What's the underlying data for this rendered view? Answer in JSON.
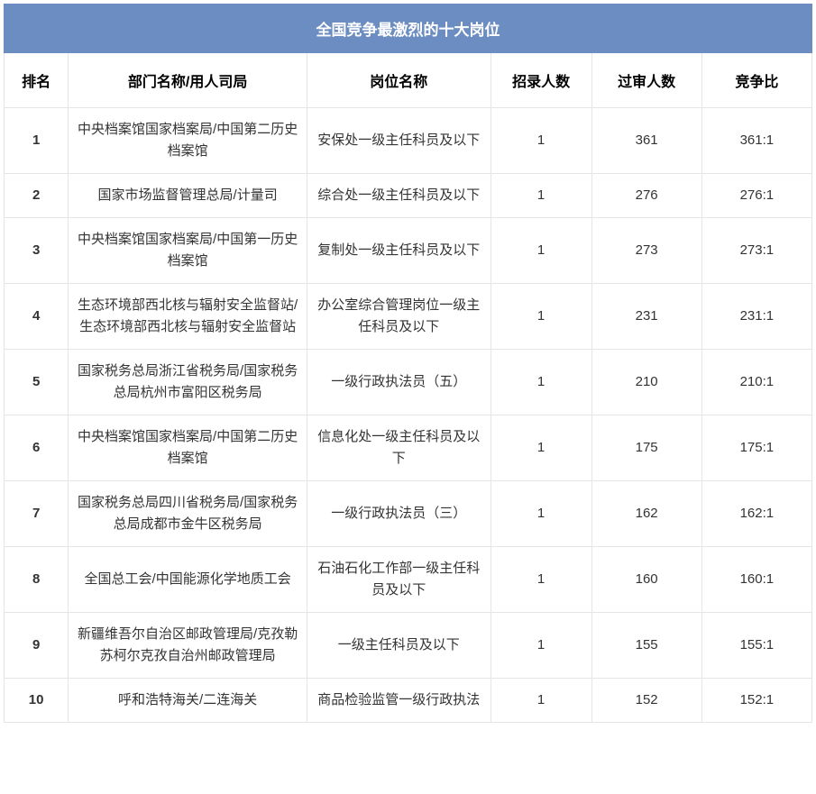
{
  "title": "全国竞争最激烈的十大岗位",
  "colors": {
    "header_bg": "#6c8dc1",
    "header_text": "#ffffff",
    "border": "#e5e5e5",
    "text": "#333333"
  },
  "columns": {
    "rank": "排名",
    "department": "部门名称/用人司局",
    "position": "岗位名称",
    "recruit": "招录人数",
    "passed": "过审人数",
    "ratio": "竞争比"
  },
  "rows": [
    {
      "rank": "1",
      "department": "中央档案馆国家档案局/中国第二历史档案馆",
      "position": "安保处一级主任科员及以下",
      "recruit": "1",
      "passed": "361",
      "ratio": "361:1"
    },
    {
      "rank": "2",
      "department": "国家市场监督管理总局/计量司",
      "position": "综合处一级主任科员及以下",
      "recruit": "1",
      "passed": "276",
      "ratio": "276:1"
    },
    {
      "rank": "3",
      "department": "中央档案馆国家档案局/中国第一历史档案馆",
      "position": "复制处一级主任科员及以下",
      "recruit": "1",
      "passed": "273",
      "ratio": "273:1"
    },
    {
      "rank": "4",
      "department": "生态环境部西北核与辐射安全监督站/生态环境部西北核与辐射安全监督站",
      "position": "办公室综合管理岗位一级主任科员及以下",
      "recruit": "1",
      "passed": "231",
      "ratio": "231:1"
    },
    {
      "rank": "5",
      "department": "国家税务总局浙江省税务局/国家税务总局杭州市富阳区税务局",
      "position": "一级行政执法员（五）",
      "recruit": "1",
      "passed": "210",
      "ratio": "210:1"
    },
    {
      "rank": "6",
      "department": "中央档案馆国家档案局/中国第二历史档案馆",
      "position": "信息化处一级主任科员及以下",
      "recruit": "1",
      "passed": "175",
      "ratio": "175:1"
    },
    {
      "rank": "7",
      "department": "国家税务总局四川省税务局/国家税务总局成都市金牛区税务局",
      "position": "一级行政执法员（三）",
      "recruit": "1",
      "passed": "162",
      "ratio": "162:1"
    },
    {
      "rank": "8",
      "department": "全国总工会/中国能源化学地质工会",
      "position": "石油石化工作部一级主任科员及以下",
      "recruit": "1",
      "passed": "160",
      "ratio": "160:1"
    },
    {
      "rank": "9",
      "department": "新疆维吾尔自治区邮政管理局/克孜勒苏柯尔克孜自治州邮政管理局",
      "position": "一级主任科员及以下",
      "recruit": "1",
      "passed": "155",
      "ratio": "155:1"
    },
    {
      "rank": "10",
      "department": "呼和浩特海关/二连海关",
      "position": "商品检验监管一级行政执法",
      "recruit": "1",
      "passed": "152",
      "ratio": "152:1"
    }
  ]
}
